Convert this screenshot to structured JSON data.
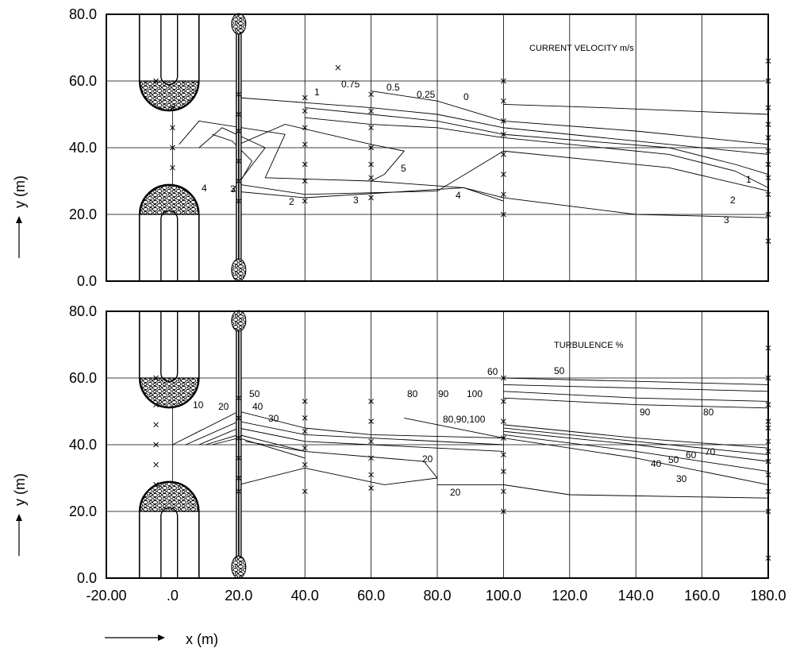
{
  "chart_data": {
    "type": "contour",
    "xlabel": "x (m)",
    "ylabel": "y (m)",
    "xlim": [
      -20,
      180
    ],
    "ylim": [
      0,
      80
    ],
    "x_ticks": [
      "-20.00",
      ".0",
      "20.0",
      "40.0",
      "60.0",
      "80.0",
      "100.0",
      "120.0",
      "140.0",
      "160.0",
      "180.0"
    ],
    "y_ticks": [
      "0.0",
      "20.0",
      "40.0",
      "60.0",
      "80.0"
    ],
    "x_tick_values": [
      -20,
      0,
      20,
      40,
      60,
      80,
      100,
      120,
      140,
      160,
      180
    ],
    "y_tick_values": [
      0,
      20,
      40,
      60,
      80
    ],
    "grid": true,
    "panels": [
      {
        "title": "CURRENT VELOCITY m/s",
        "contours": [
          {
            "label": "0",
            "points": [
              [
                100,
                53
              ],
              [
                130,
                52
              ],
              [
                180,
                50
              ]
            ]
          },
          {
            "label": "0.25",
            "points": [
              [
                60,
                57
              ],
              [
                80,
                54
              ],
              [
                100,
                48
              ],
              [
                140,
                45
              ],
              [
                170,
                42
              ],
              [
                180,
                41
              ]
            ]
          },
          {
            "label": "0.5",
            "points": [
              [
                20,
                55
              ],
              [
                60,
                52
              ],
              [
                80,
                50
              ],
              [
                100,
                46
              ],
              [
                140,
                42
              ],
              [
                180,
                38
              ]
            ]
          },
          {
            "label": "0.75",
            "points": [
              [
                40,
                52
              ],
              [
                60,
                50
              ],
              [
                80,
                48
              ],
              [
                100,
                44
              ],
              [
                150,
                40
              ],
              [
                170,
                35
              ],
              [
                180,
                32
              ]
            ]
          },
          {
            "label": "1",
            "points": [
              [
                40,
                49
              ],
              [
                60,
                47
              ],
              [
                80,
                46
              ],
              [
                100,
                43
              ],
              [
                150,
                38
              ],
              [
                170,
                33
              ],
              [
                180,
                28
              ]
            ]
          },
          {
            "label": "2",
            "points": [
              [
                12,
                44
              ],
              [
                18,
                42
              ],
              [
                24,
                36
              ],
              [
                20,
                29
              ],
              [
                40,
                26
              ],
              [
                80,
                27
              ],
              [
                100,
                39
              ],
              [
                150,
                34
              ],
              [
                180,
                27
              ]
            ]
          },
          {
            "label": "3",
            "points": [
              [
                8,
                40
              ],
              [
                15,
                46
              ],
              [
                28,
                40
              ],
              [
                18,
                27
              ],
              [
                40,
                25
              ],
              [
                88,
                28
              ],
              [
                100,
                25
              ],
              [
                140,
                20
              ],
              [
                180,
                19
              ]
            ]
          },
          {
            "label": "4",
            "points": [
              [
                2,
                41
              ],
              [
                8,
                48
              ],
              [
                34,
                44
              ],
              [
                28,
                31
              ],
              [
                60,
                30
              ],
              [
                88,
                28
              ],
              [
                100,
                24
              ]
            ]
          },
          {
            "label": "5",
            "points": [
              [
                20,
                41
              ],
              [
                34,
                47
              ],
              [
                60,
                41
              ],
              [
                70,
                39
              ],
              [
                64,
                32
              ],
              [
                60,
                30
              ]
            ]
          }
        ],
        "markers": [
          [
            50,
            64
          ],
          [
            -5,
            60
          ],
          [
            20,
            56
          ],
          [
            20,
            50
          ],
          [
            20,
            45
          ],
          [
            20,
            36
          ],
          [
            20,
            30
          ],
          [
            20,
            24
          ],
          [
            40,
            55
          ],
          [
            40,
            51
          ],
          [
            40,
            46
          ],
          [
            40,
            41
          ],
          [
            40,
            35
          ],
          [
            40,
            30
          ],
          [
            40,
            24
          ],
          [
            60,
            56
          ],
          [
            60,
            51
          ],
          [
            60,
            46
          ],
          [
            60,
            40
          ],
          [
            60,
            35
          ],
          [
            60,
            31
          ],
          [
            60,
            25
          ],
          [
            100,
            60
          ],
          [
            100,
            54
          ],
          [
            100,
            48
          ],
          [
            100,
            44
          ],
          [
            100,
            38
          ],
          [
            100,
            32
          ],
          [
            100,
            26
          ],
          [
            100,
            20
          ],
          [
            0,
            52
          ],
          [
            0,
            46
          ],
          [
            0,
            40
          ],
          [
            0,
            34
          ],
          [
            180,
            66
          ],
          [
            180,
            60
          ],
          [
            180,
            52
          ],
          [
            180,
            47
          ],
          [
            180,
            43
          ],
          [
            180,
            39
          ],
          [
            180,
            35
          ],
          [
            180,
            31
          ],
          [
            180,
            26
          ],
          [
            180,
            20
          ],
          [
            180,
            12
          ]
        ]
      },
      {
        "title": "TURBULENCE %",
        "contours": [
          {
            "label": "60",
            "points": [
              [
                100,
                58
              ],
              [
                140,
                57
              ],
              [
                180,
                56
              ]
            ]
          },
          {
            "label": "50",
            "points": [
              [
                100,
                60
              ],
              [
                140,
                59
              ],
              [
                180,
                58
              ]
            ]
          },
          {
            "label": "90",
            "points": [
              [
                100,
                56
              ],
              [
                140,
                54
              ],
              [
                180,
                53
              ]
            ]
          },
          {
            "label": "80",
            "points": [
              [
                100,
                54
              ],
              [
                140,
                52
              ],
              [
                180,
                51
              ]
            ]
          },
          {
            "label": "70",
            "points": [
              [
                100,
                46
              ],
              [
                140,
                42
              ],
              [
                180,
                39
              ]
            ]
          },
          {
            "label": "60",
            "points": [
              [
                100,
                45
              ],
              [
                140,
                41
              ],
              [
                180,
                37
              ]
            ]
          },
          {
            "label": "50",
            "points": [
              [
                100,
                44
              ],
              [
                140,
                40
              ],
              [
                180,
                35
              ]
            ]
          },
          {
            "label": "40",
            "points": [
              [
                100,
                43
              ],
              [
                140,
                38
              ],
              [
                180,
                32
              ]
            ]
          },
          {
            "label": "30",
            "points": [
              [
                100,
                42
              ],
              [
                140,
                36
              ],
              [
                180,
                28
              ]
            ]
          },
          {
            "label": "20",
            "points": [
              [
                80,
                28
              ],
              [
                100,
                28
              ],
              [
                120,
                25
              ],
              [
                180,
                24
              ]
            ]
          },
          {
            "label": "20",
            "points": [
              [
                22,
                41
              ],
              [
                40,
                38
              ],
              [
                76,
                35
              ],
              [
                80,
                30
              ],
              [
                64,
                28
              ],
              [
                40,
                33
              ],
              [
                20,
                28
              ]
            ]
          },
          {
            "label": "10",
            "points": [
              [
                0,
                40
              ],
              [
                20,
                50
              ],
              [
                40,
                45
              ],
              [
                60,
                43
              ],
              [
                100,
                42
              ]
            ]
          },
          {
            "label": "20",
            "points": [
              [
                4,
                40
              ],
              [
                20,
                47
              ],
              [
                40,
                43
              ],
              [
                60,
                42
              ],
              [
                100,
                40
              ]
            ]
          },
          {
            "label": "30",
            "points": [
              [
                8,
                40
              ],
              [
                20,
                45
              ],
              [
                40,
                41
              ],
              [
                60,
                40
              ],
              [
                100,
                38
              ]
            ]
          },
          {
            "label": "40",
            "points": [
              [
                10,
                40
              ],
              [
                20,
                43
              ],
              [
                40,
                38
              ]
            ]
          },
          {
            "label": "50",
            "points": [
              [
                12,
                40
              ],
              [
                20,
                42
              ],
              [
                40,
                36
              ]
            ]
          },
          {
            "label": "80,90,100",
            "points": [
              [
                70,
                48
              ],
              [
                100,
                42
              ]
            ]
          }
        ],
        "markers": [
          [
            -5,
            60
          ],
          [
            -5,
            52
          ],
          [
            -5,
            46
          ],
          [
            -5,
            40
          ],
          [
            -5,
            34
          ],
          [
            -5,
            28
          ],
          [
            20,
            54
          ],
          [
            20,
            48
          ],
          [
            20,
            42
          ],
          [
            20,
            36
          ],
          [
            20,
            30
          ],
          [
            20,
            26
          ],
          [
            40,
            53
          ],
          [
            40,
            48
          ],
          [
            40,
            44
          ],
          [
            40,
            39
          ],
          [
            40,
            34
          ],
          [
            40,
            26
          ],
          [
            60,
            53
          ],
          [
            60,
            47
          ],
          [
            60,
            41
          ],
          [
            60,
            36
          ],
          [
            60,
            31
          ],
          [
            60,
            27
          ],
          [
            100,
            60
          ],
          [
            100,
            53
          ],
          [
            100,
            47
          ],
          [
            100,
            42
          ],
          [
            100,
            37
          ],
          [
            100,
            32
          ],
          [
            100,
            26
          ],
          [
            100,
            20
          ],
          [
            180,
            69
          ],
          [
            180,
            60
          ],
          [
            180,
            52
          ],
          [
            180,
            47
          ],
          [
            180,
            45
          ],
          [
            180,
            41
          ],
          [
            180,
            38
          ],
          [
            180,
            35
          ],
          [
            180,
            31
          ],
          [
            180,
            26
          ],
          [
            180,
            20
          ],
          [
            180,
            6
          ]
        ]
      }
    ]
  },
  "label_text": {
    "v_0": "0",
    "v_025": "0.25",
    "v_05": "0.5",
    "v_075": "0.75",
    "v_1a": "1",
    "v_1b": "1",
    "v_2a": "2",
    "v_2b": "2",
    "v_3a": "3",
    "v_3b": "3",
    "v_3c": "3",
    "v_4a": "4",
    "v_4b": "4",
    "v_5": "5",
    "t_60top": "60",
    "t_50top": "50",
    "t_90r": "90",
    "t_80r": "80",
    "t_70": "70",
    "t_60": "60",
    "t_50": "50",
    "t_40": "40",
    "t_30": "30",
    "t_20a": "20",
    "t_20b": "20",
    "t_10": "10",
    "t_20c": "20",
    "t_40l": "40",
    "t_50l": "50",
    "t_30l": "30",
    "t_80c": "80",
    "t_90c": "90",
    "t_100c": "100",
    "t_combo": "80,90,100"
  }
}
